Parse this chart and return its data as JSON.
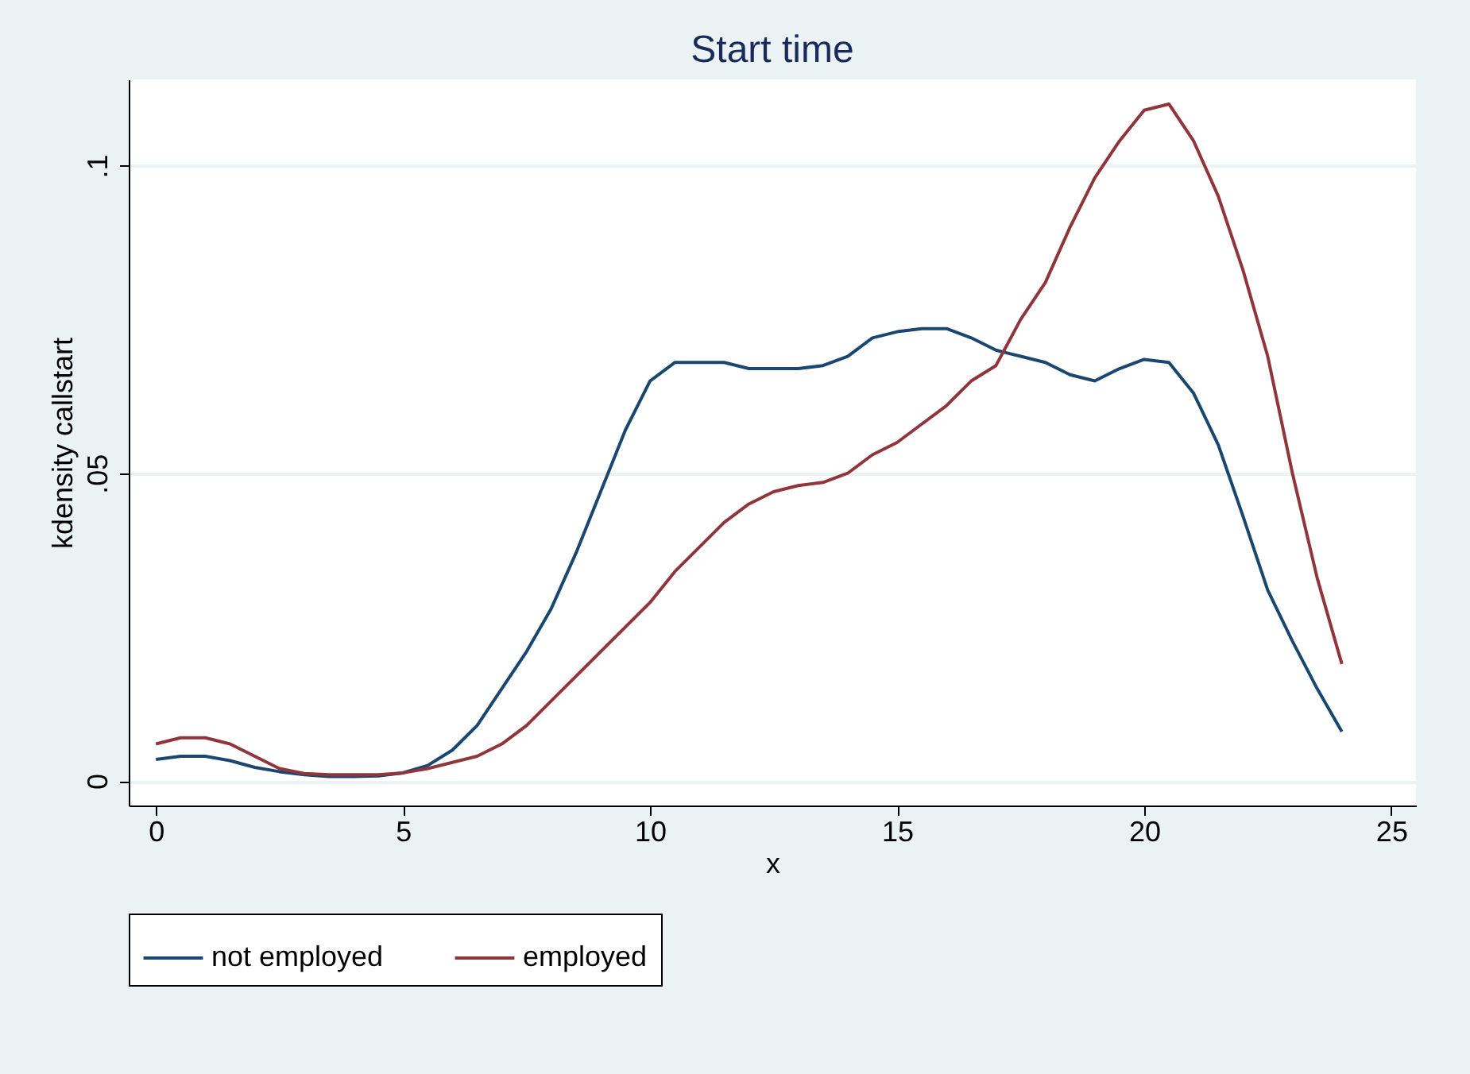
{
  "chart_data": {
    "type": "line",
    "title": "Start time",
    "xlabel": "x",
    "ylabel": "kdensity callstart",
    "x": [
      0,
      0.5,
      1,
      1.5,
      2,
      2.5,
      3,
      3.5,
      4,
      4.5,
      5,
      5.5,
      6,
      6.5,
      7,
      7.5,
      8,
      8.5,
      9,
      9.5,
      10,
      10.5,
      11,
      11.5,
      12,
      12.5,
      13,
      13.5,
      14,
      14.5,
      15,
      15.5,
      16,
      16.5,
      17,
      17.5,
      18,
      18.5,
      19,
      19.5,
      20,
      20.5,
      21,
      21.5,
      22,
      22.5,
      23,
      23.5,
      24
    ],
    "series": [
      {
        "name": "not employed",
        "color": "#1a476f",
        "values": [
          0.0035,
          0.004,
          0.004,
          0.0033,
          0.0022,
          0.0015,
          0.001,
          0.0007,
          0.0007,
          0.0008,
          0.0013,
          0.0025,
          0.005,
          0.009,
          0.015,
          0.021,
          0.028,
          0.037,
          0.047,
          0.057,
          0.065,
          0.068,
          0.068,
          0.068,
          0.067,
          0.067,
          0.067,
          0.0675,
          0.069,
          0.072,
          0.073,
          0.0735,
          0.0735,
          0.072,
          0.07,
          0.069,
          0.068,
          0.066,
          0.065,
          0.067,
          0.0685,
          0.068,
          0.063,
          0.0546,
          0.043,
          0.031,
          0.0227,
          0.015,
          0.008
        ]
      },
      {
        "name": "employed",
        "color": "#90353b",
        "values": [
          0.006,
          0.007,
          0.007,
          0.006,
          0.004,
          0.002,
          0.0012,
          0.001,
          0.001,
          0.001,
          0.0013,
          0.002,
          0.003,
          0.004,
          0.006,
          0.009,
          0.013,
          0.017,
          0.021,
          0.025,
          0.029,
          0.034,
          0.038,
          0.042,
          0.045,
          0.047,
          0.048,
          0.0485,
          0.05,
          0.053,
          0.055,
          0.058,
          0.061,
          0.065,
          0.0675,
          0.075,
          0.081,
          0.09,
          0.098,
          0.104,
          0.109,
          0.11,
          0.104,
          0.095,
          0.083,
          0.069,
          0.05,
          0.033,
          0.019
        ]
      }
    ],
    "xlim": [
      -0.55,
      25.5
    ],
    "xticks": [
      0,
      5,
      10,
      15,
      20,
      25
    ],
    "ylim": [
      -0.004,
      0.114
    ],
    "yticks": [
      {
        "value": 0,
        "label": "0"
      },
      {
        "value": 0.05,
        "label": ".05"
      },
      {
        "value": 0.1,
        "label": ".1"
      }
    ],
    "grid": "y",
    "legend": "bottom",
    "line_style": "solid"
  }
}
